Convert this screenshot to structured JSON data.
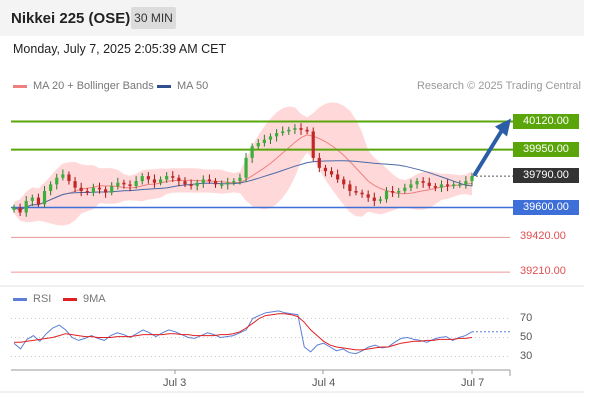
{
  "header": {
    "title": "Nikkei 225 (OSE)",
    "interval": "30 MIN"
  },
  "datetime": "Monday, July 7, 2025 2:05:39 AM CET",
  "legend": {
    "bollinger": "MA 20 + Bollinger Bands",
    "ma50": "MA 50",
    "rsi": "RSI",
    "rsi_ma": "9MA"
  },
  "credit": "Research © 2025 Trading Central",
  "colors": {
    "green": "#5aa50a",
    "blue": "#3e6fd8",
    "red": "#e05050",
    "band": "#ffcccc",
    "dark": "#333333",
    "arrow": "#2b5ea7"
  },
  "levels": [
    {
      "value": "40120.00",
      "style": "green-box"
    },
    {
      "value": "39950.00",
      "style": "green-box"
    },
    {
      "value": "39790.00",
      "style": "dark-box"
    },
    {
      "value": "39600.00",
      "style": "blue-box"
    },
    {
      "value": "39420.00",
      "style": "red-text"
    },
    {
      "value": "39210.00",
      "style": "red-text"
    }
  ],
  "x_ticks": [
    "Jul 3",
    "Jul 4",
    "Jul 7"
  ],
  "rsi_ticks": [
    "70",
    "50",
    "30"
  ],
  "chart_data": {
    "type": "candlestick",
    "title": "Nikkei 225 (OSE)",
    "interval": "30 MIN",
    "current_price": 39790,
    "resistance": [
      40120,
      39950
    ],
    "support": [
      39600,
      39420,
      39210
    ],
    "x_labels": [
      "Jul 3",
      "Jul 4",
      "Jul 7"
    ],
    "close_series": [
      39600,
      39570,
      39640,
      39660,
      39620,
      39700,
      39740,
      39780,
      39800,
      39760,
      39720,
      39700,
      39690,
      39720,
      39710,
      39690,
      39730,
      39750,
      39740,
      39730,
      39760,
      39790,
      39770,
      39750,
      39770,
      39790,
      39780,
      39760,
      39740,
      39730,
      39750,
      39770,
      39760,
      39740,
      39740,
      39750,
      39760,
      39780,
      39900,
      39970,
      39990,
      40010,
      40030,
      40050,
      40060,
      40070,
      40080,
      40070,
      40060,
      39900,
      39840,
      39820,
      39800,
      39770,
      39740,
      39700,
      39690,
      39680,
      39660,
      39640,
      39650,
      39700,
      39690,
      39700,
      39720,
      39740,
      39760,
      39750,
      39730,
      39720,
      39740,
      39730,
      39740,
      39740,
      39760,
      39790
    ],
    "rsi": {
      "values": [
        44,
        38,
        48,
        52,
        46,
        54,
        60,
        63,
        58,
        50,
        47,
        49,
        52,
        49,
        47,
        52,
        55,
        53,
        50,
        54,
        58,
        55,
        51,
        55,
        58,
        56,
        53,
        50,
        49,
        52,
        55,
        53,
        50,
        51,
        52,
        55,
        58,
        70,
        73,
        76,
        77,
        78,
        76,
        75,
        74,
        40,
        35,
        42,
        44,
        40,
        36,
        38,
        34,
        33,
        36,
        40,
        42,
        39,
        40,
        45,
        49,
        50,
        48,
        47,
        45,
        48,
        50,
        51,
        47,
        50,
        52,
        56
      ],
      "ma9": [
        45,
        45,
        46,
        47,
        48,
        49,
        50,
        52,
        54,
        53,
        52,
        51,
        51,
        50,
        50,
        50,
        51,
        51,
        51,
        52,
        53,
        53,
        53,
        53,
        54,
        54,
        53,
        53,
        52,
        52,
        52,
        52,
        53,
        53,
        54,
        56,
        60,
        65,
        70,
        73,
        74,
        75,
        75,
        74,
        72,
        66,
        58,
        52,
        46,
        42,
        40,
        39,
        38,
        37,
        37,
        38,
        39,
        40,
        40,
        42,
        44,
        45,
        46,
        46,
        47,
        47,
        48,
        48,
        48,
        49,
        49,
        50
      ],
      "ylim": [
        20,
        80
      ],
      "ticks": [
        70,
        50,
        30
      ]
    },
    "ylim": [
      39150,
      40250
    ]
  }
}
